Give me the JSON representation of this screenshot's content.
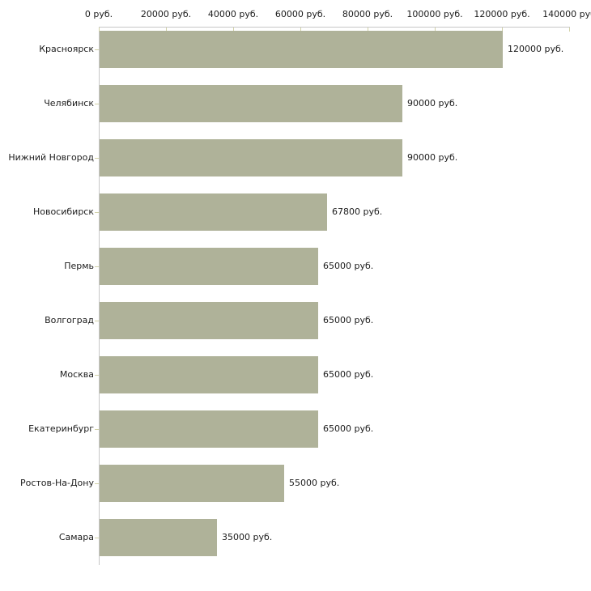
{
  "chart_data": {
    "type": "bar",
    "orientation": "horizontal",
    "title": "",
    "categories": [
      "Красноярск",
      "Челябинск",
      "Нижний Новгород",
      "Новосибирск",
      "Пермь",
      "Волгоград",
      "Москва",
      "Екатеринбург",
      "Ростов-На-Дону",
      "Самара"
    ],
    "values": [
      120000,
      90000,
      90000,
      67800,
      65000,
      65000,
      65000,
      65000,
      55000,
      35000
    ],
    "value_labels": [
      "120000 руб.",
      "90000 руб.",
      "90000 руб.",
      "67800 руб.",
      "65000 руб.",
      "65000 руб.",
      "65000 руб.",
      "65000 руб.",
      "55000 руб.",
      "35000 руб."
    ],
    "x_axis": {
      "position": "top",
      "min": 0,
      "max": 140000,
      "ticks": [
        0,
        20000,
        40000,
        60000,
        80000,
        100000,
        120000,
        140000
      ],
      "tick_labels": [
        "0 руб.",
        "20000 руб.",
        "40000 руб.",
        "60000 руб.",
        "80000 руб.",
        "100000 руб.",
        "120000 руб.",
        "140000 руб"
      ]
    },
    "ylabel": "",
    "xlabel": "",
    "grid": false,
    "legend": false,
    "colors": {
      "bar": "#afb299",
      "axis_line": "#c6c6c6",
      "tick": "#d2d2a8",
      "text": "#1c1c1c",
      "background": "#ffffff"
    }
  }
}
